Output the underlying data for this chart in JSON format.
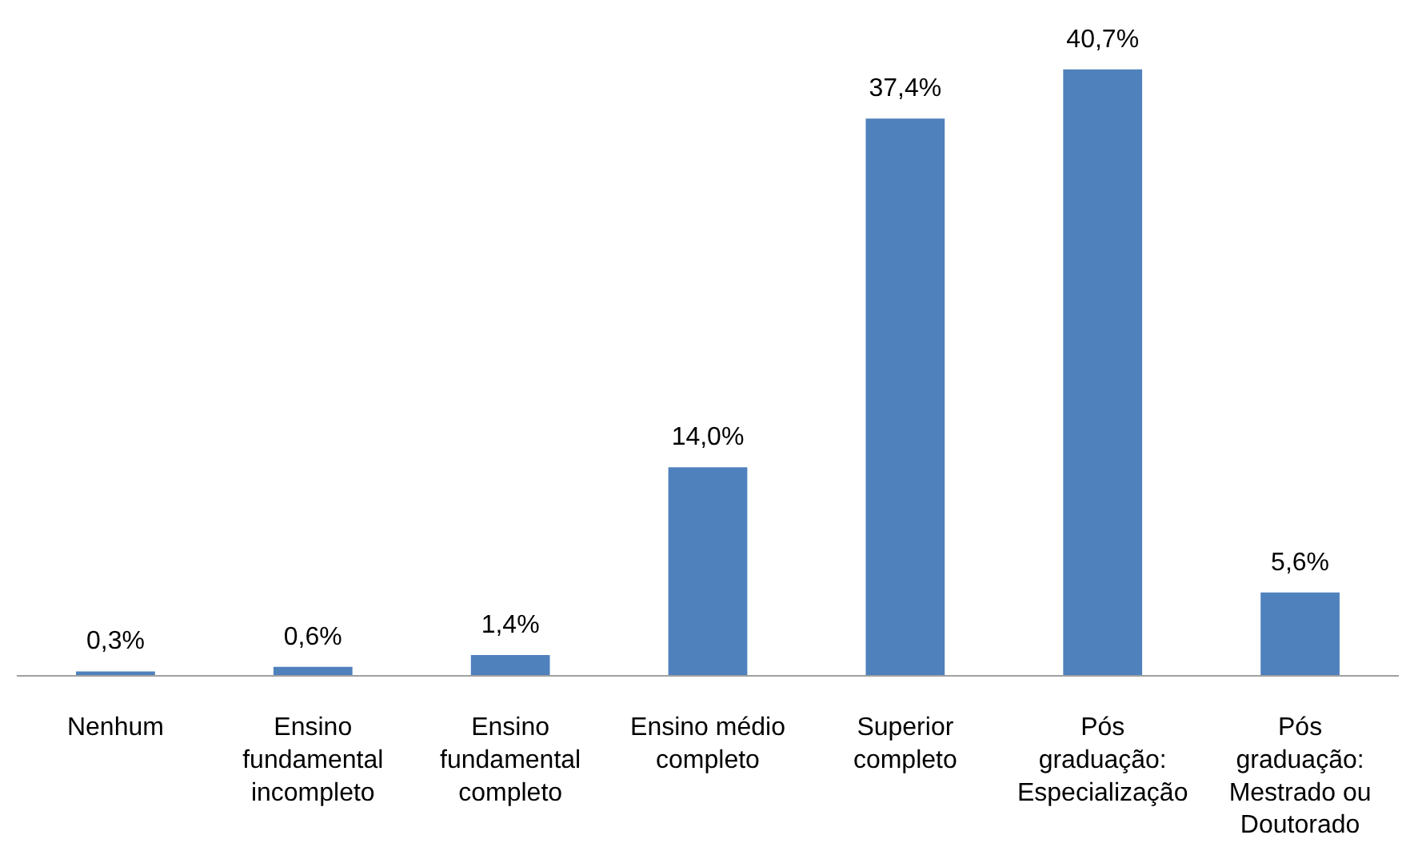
{
  "chart_data": {
    "type": "bar",
    "categories": [
      "Nenhum",
      "Ensino fundamental incompleto",
      "Ensino fundamental completo",
      "Ensino médio completo",
      "Superior completo",
      "Pós graduação: Especialização",
      "Pós graduação: Mestrado ou Doutorado"
    ],
    "values": [
      0.3,
      0.6,
      1.4,
      14.0,
      37.4,
      40.7,
      5.6
    ],
    "value_labels": [
      "0,3%",
      "0,6%",
      "1,4%",
      "14,0%",
      "37,4%",
      "40,7%",
      "5,6%"
    ],
    "color": "#4f81bd",
    "grid": false
  }
}
